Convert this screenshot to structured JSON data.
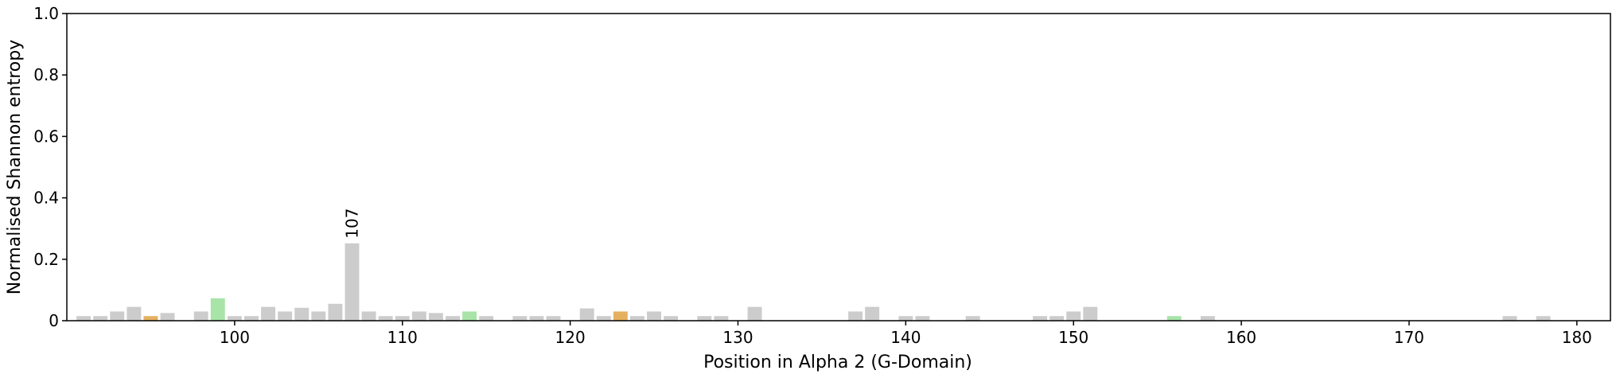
{
  "chart_data": {
    "type": "bar",
    "title": "",
    "xlabel": "Position in Alpha 2 (G-Domain)",
    "ylabel": "Normalised Shannon entropy",
    "xlim": [
      90,
      182
    ],
    "ylim": [
      0,
      1.0
    ],
    "xticks": [
      100,
      110,
      120,
      130,
      140,
      150,
      160,
      170,
      180
    ],
    "yticks": [
      "0",
      "0.2",
      "0.4",
      "0.6",
      "0.8",
      "1.0"
    ],
    "grid": false,
    "legend": "none",
    "colors": {
      "default": "#cccccc",
      "orange": "#e6b061",
      "green": "#a8e3a8"
    },
    "bars": [
      {
        "x": 91,
        "y": 0.015,
        "color": "default"
      },
      {
        "x": 92,
        "y": 0.015,
        "color": "default"
      },
      {
        "x": 93,
        "y": 0.03,
        "color": "default"
      },
      {
        "x": 94,
        "y": 0.045,
        "color": "default"
      },
      {
        "x": 95,
        "y": 0.015,
        "color": "orange"
      },
      {
        "x": 96,
        "y": 0.025,
        "color": "default"
      },
      {
        "x": 98,
        "y": 0.03,
        "color": "default"
      },
      {
        "x": 99,
        "y": 0.073,
        "color": "green"
      },
      {
        "x": 100,
        "y": 0.015,
        "color": "default"
      },
      {
        "x": 101,
        "y": 0.015,
        "color": "default"
      },
      {
        "x": 102,
        "y": 0.045,
        "color": "default"
      },
      {
        "x": 103,
        "y": 0.03,
        "color": "default"
      },
      {
        "x": 104,
        "y": 0.042,
        "color": "default"
      },
      {
        "x": 105,
        "y": 0.03,
        "color": "default"
      },
      {
        "x": 106,
        "y": 0.055,
        "color": "default"
      },
      {
        "x": 107,
        "y": 0.252,
        "color": "default",
        "label": "107"
      },
      {
        "x": 108,
        "y": 0.03,
        "color": "default"
      },
      {
        "x": 109,
        "y": 0.015,
        "color": "default"
      },
      {
        "x": 110,
        "y": 0.015,
        "color": "default"
      },
      {
        "x": 111,
        "y": 0.03,
        "color": "default"
      },
      {
        "x": 112,
        "y": 0.025,
        "color": "default"
      },
      {
        "x": 113,
        "y": 0.015,
        "color": "default"
      },
      {
        "x": 114,
        "y": 0.03,
        "color": "green"
      },
      {
        "x": 115,
        "y": 0.015,
        "color": "default"
      },
      {
        "x": 117,
        "y": 0.015,
        "color": "default"
      },
      {
        "x": 118,
        "y": 0.015,
        "color": "default"
      },
      {
        "x": 119,
        "y": 0.015,
        "color": "default"
      },
      {
        "x": 121,
        "y": 0.04,
        "color": "default"
      },
      {
        "x": 122,
        "y": 0.015,
        "color": "default"
      },
      {
        "x": 123,
        "y": 0.03,
        "color": "orange"
      },
      {
        "x": 124,
        "y": 0.015,
        "color": "default"
      },
      {
        "x": 125,
        "y": 0.03,
        "color": "default"
      },
      {
        "x": 126,
        "y": 0.015,
        "color": "default"
      },
      {
        "x": 128,
        "y": 0.015,
        "color": "default"
      },
      {
        "x": 129,
        "y": 0.015,
        "color": "default"
      },
      {
        "x": 131,
        "y": 0.045,
        "color": "default"
      },
      {
        "x": 137,
        "y": 0.03,
        "color": "default"
      },
      {
        "x": 138,
        "y": 0.045,
        "color": "default"
      },
      {
        "x": 140,
        "y": 0.015,
        "color": "default"
      },
      {
        "x": 141,
        "y": 0.015,
        "color": "default"
      },
      {
        "x": 144,
        "y": 0.015,
        "color": "default"
      },
      {
        "x": 148,
        "y": 0.015,
        "color": "default"
      },
      {
        "x": 149,
        "y": 0.015,
        "color": "default"
      },
      {
        "x": 150,
        "y": 0.03,
        "color": "default"
      },
      {
        "x": 151,
        "y": 0.045,
        "color": "default"
      },
      {
        "x": 156,
        "y": 0.015,
        "color": "green"
      },
      {
        "x": 158,
        "y": 0.015,
        "color": "default"
      },
      {
        "x": 176,
        "y": 0.015,
        "color": "default"
      },
      {
        "x": 178,
        "y": 0.015,
        "color": "default"
      }
    ]
  }
}
